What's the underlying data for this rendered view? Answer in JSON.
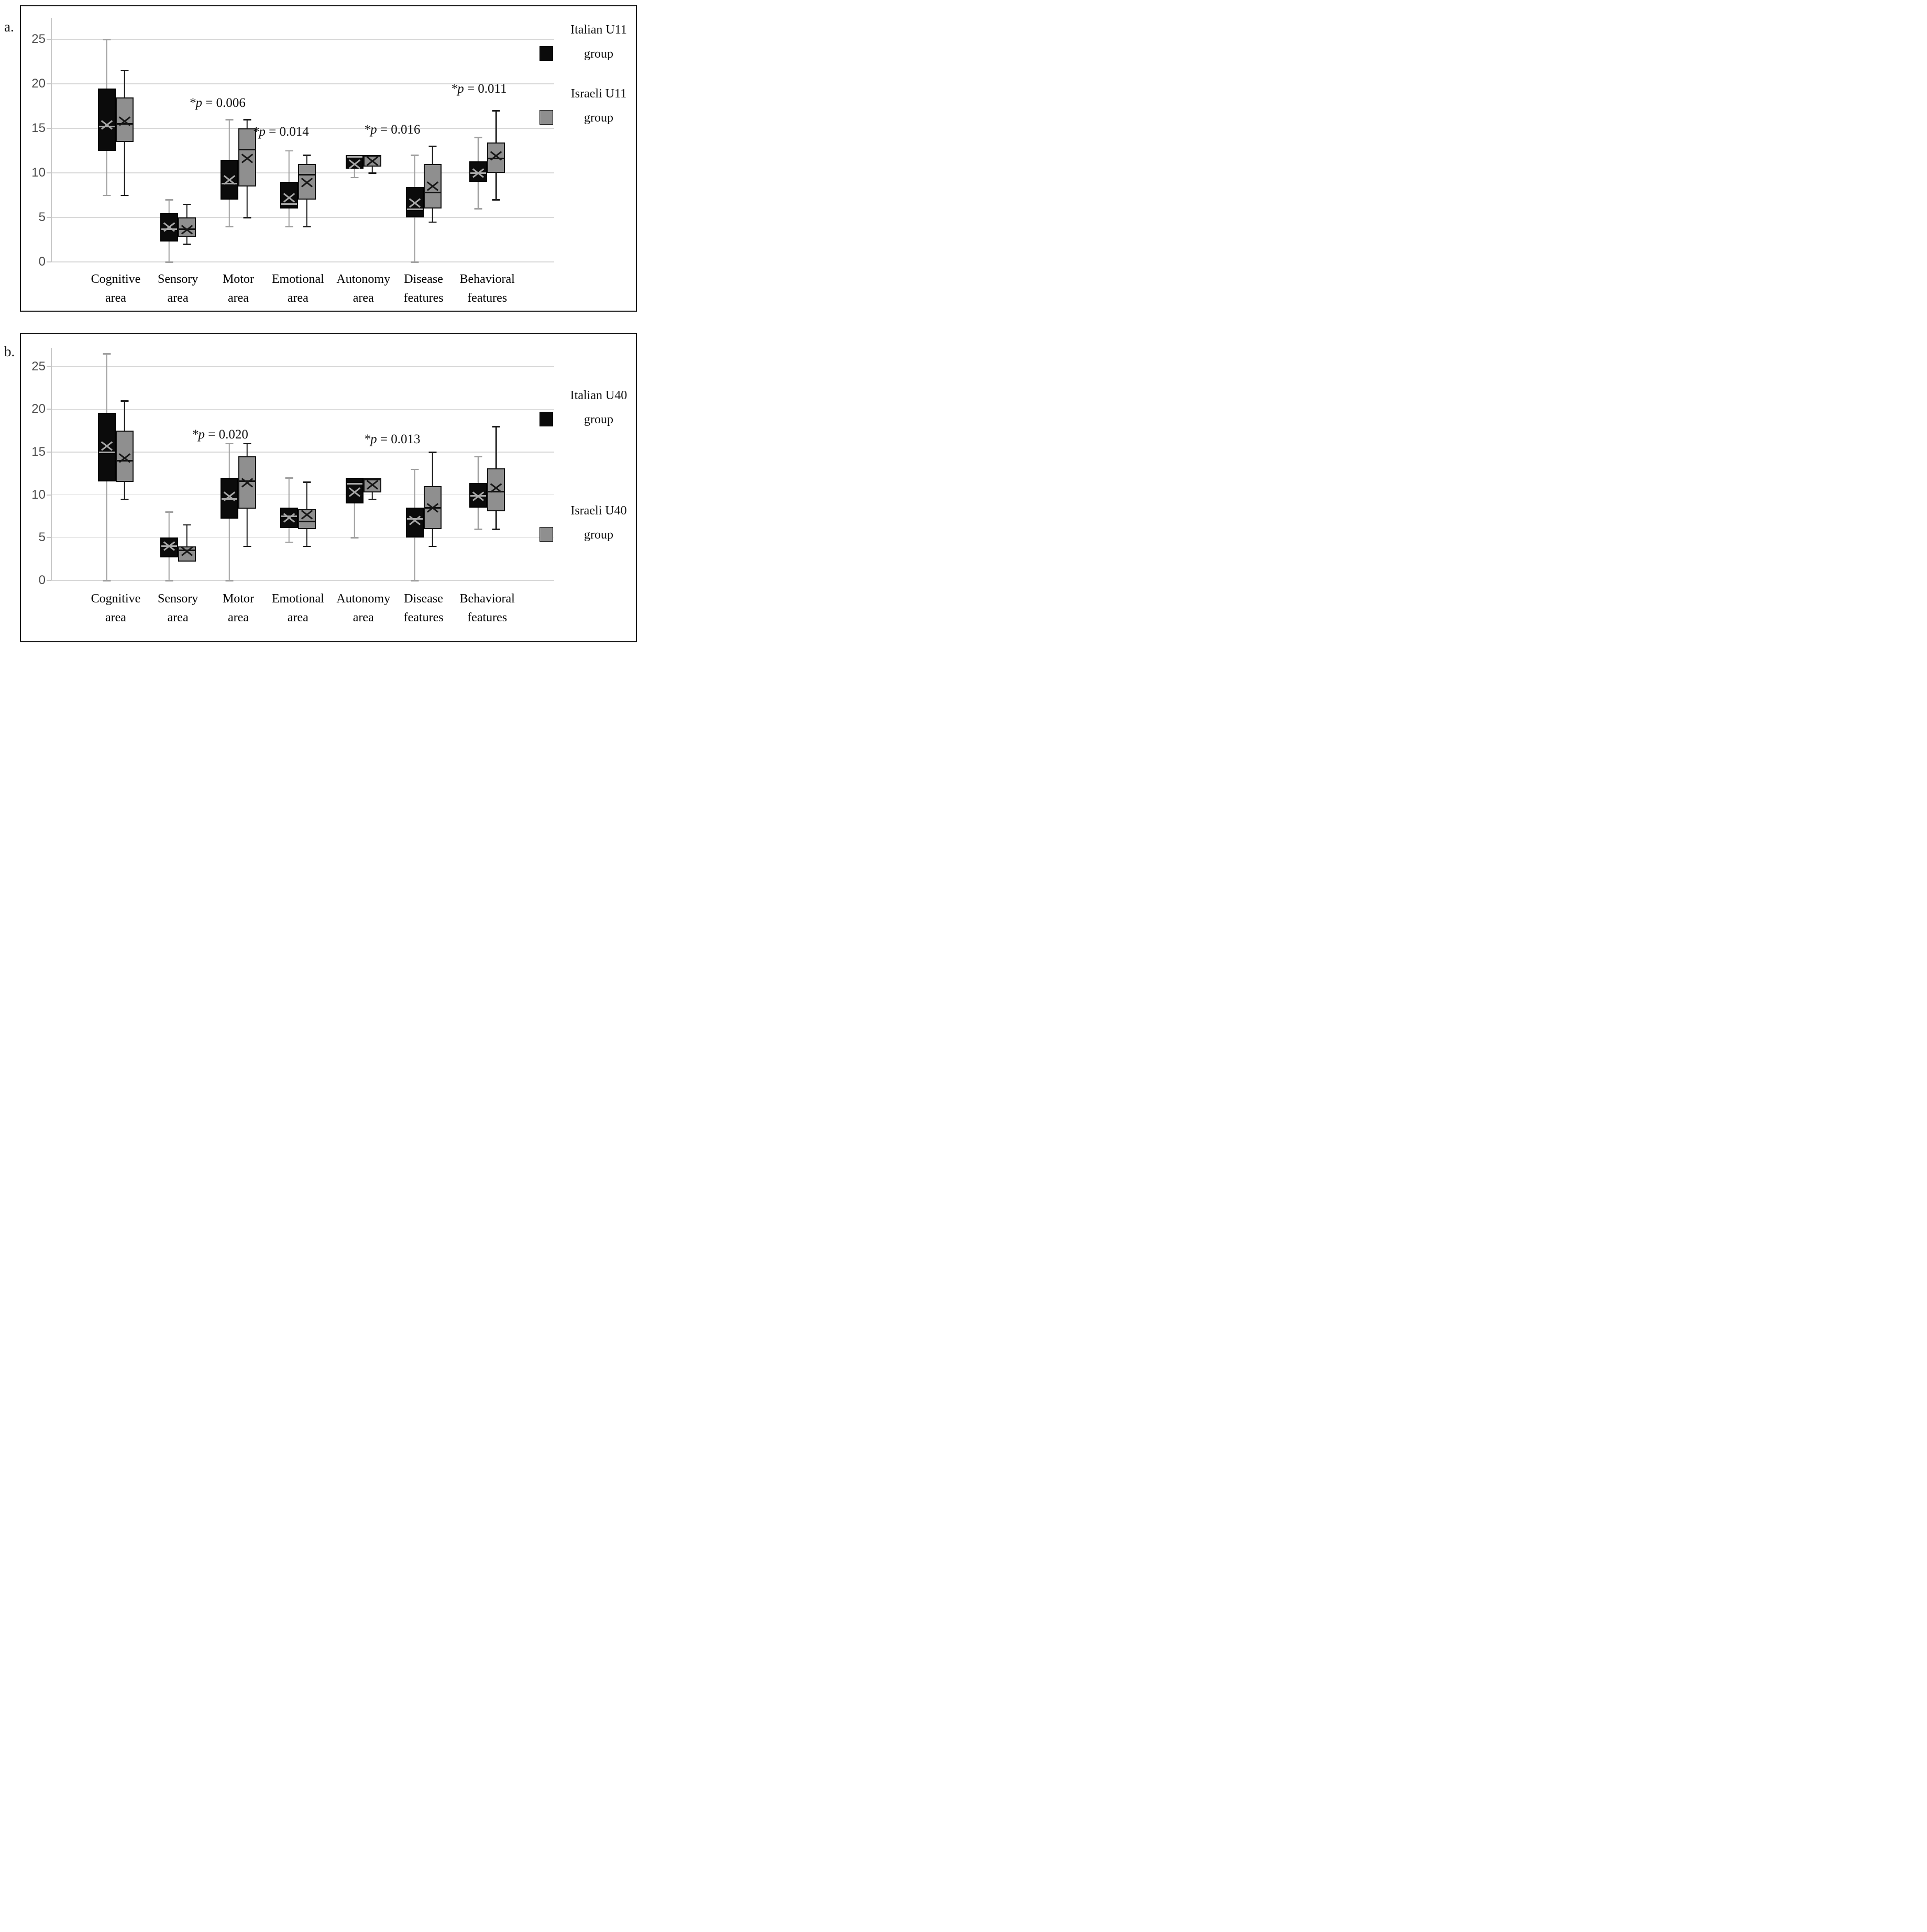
{
  "panels": [
    {
      "label": "a.",
      "legend": [
        {
          "name": "Italian U11 group",
          "line1": "Italian U11",
          "line2": "group",
          "series_index": 0
        },
        {
          "name": "Israeli U11 group",
          "line1": "Israeli U11",
          "line2": "group",
          "series_index": 1
        }
      ]
    },
    {
      "label": "b.",
      "legend": [
        {
          "name": "Italian U40 group",
          "line1": "Italian U40",
          "line2": "group",
          "series_index": 0
        },
        {
          "name": "Israeli U40 group",
          "line1": "Israeli U40",
          "line2": "group",
          "series_index": 1
        }
      ]
    }
  ],
  "chart_data": [
    {
      "type": "box",
      "title": "",
      "xlabel": "",
      "ylabel": "",
      "ylim": [
        0,
        27.5
      ],
      "yticks": [
        0,
        5,
        10,
        15,
        20,
        25
      ],
      "grid": true,
      "legend_position": "right",
      "categories": [
        "Cognitive area",
        "Sensory area",
        "Motor area",
        "Emotional area",
        "Autonomy area",
        "Disease features",
        "Behavioral features"
      ],
      "category_lines": [
        [
          "Cognitive",
          "area"
        ],
        [
          "Sensory",
          "area"
        ],
        [
          "Motor",
          "area"
        ],
        [
          "Emotional",
          "area"
        ],
        [
          "Autonomy",
          "area"
        ],
        [
          "Disease",
          "features"
        ],
        [
          "Behavioral",
          "features"
        ]
      ],
      "series": [
        {
          "name": "Italian U11 group",
          "box_color": "#0b0b0b",
          "border_color": "#000000",
          "whisker_color": "#a0a0a0",
          "median_color": "#a8a8a8",
          "marker_color": "#a8a8a8",
          "boxes": [
            {
              "min": 7.5,
              "q1": 12.5,
              "median": 15.2,
              "mean": 15.4,
              "q3": 19.5,
              "max": 25
            },
            {
              "min": 0,
              "q1": 2.3,
              "median": 3.7,
              "mean": 3.9,
              "q3": 5.5,
              "max": 7
            },
            {
              "min": 4,
              "q1": 7,
              "median": 8.8,
              "mean": 9.2,
              "q3": 11.5,
              "max": 16
            },
            {
              "min": 4,
              "q1": 6,
              "median": 6.5,
              "mean": 7.2,
              "q3": 9,
              "max": 12.5
            },
            {
              "min": 9.5,
              "q1": 10.5,
              "median": 11.8,
              "mean": 11.0,
              "q3": 12,
              "max": 12
            },
            {
              "min": 0,
              "q1": 5,
              "median": 5.9,
              "mean": 6.6,
              "q3": 8.4,
              "max": 12
            },
            {
              "min": 6,
              "q1": 9,
              "median": 10,
              "mean": 10.0,
              "q3": 11.3,
              "max": 14
            }
          ]
        },
        {
          "name": "Israeli U11 group",
          "box_color": "#8f8f8f",
          "border_color": "#141414",
          "whisker_color": "#1c1c1c",
          "median_color": "#111111",
          "marker_color": "#161616",
          "boxes": [
            {
              "min": 7.5,
              "q1": 13.5,
              "median": 15.5,
              "mean": 15.8,
              "q3": 18.5,
              "max": 21.5
            },
            {
              "min": 2,
              "q1": 2.8,
              "median": 3.7,
              "mean": 3.6,
              "q3": 5,
              "max": 6.5
            },
            {
              "min": 5,
              "q1": 8.5,
              "median": 12.6,
              "mean": 11.6,
              "q3": 15,
              "max": 16
            },
            {
              "min": 4,
              "q1": 7,
              "median": 9.8,
              "mean": 8.9,
              "q3": 11,
              "max": 12
            },
            {
              "min": 10,
              "q1": 10.7,
              "median": 11.9,
              "mean": 11.3,
              "q3": 12,
              "max": 12
            },
            {
              "min": 4.5,
              "q1": 6,
              "median": 7.8,
              "mean": 8.5,
              "q3": 11,
              "max": 13
            },
            {
              "min": 7,
              "q1": 10,
              "median": 11.6,
              "mean": 11.9,
              "q3": 13.4,
              "max": 17
            }
          ]
        }
      ],
      "annotations": [
        {
          "text_italic": "*p",
          "text_rest": "= 0.006",
          "category_index": 2,
          "y": 17.8,
          "dx": -40
        },
        {
          "text_italic": "*p",
          "text_rest": "= 0.014",
          "category_index": 3,
          "y": 14.6,
          "dx": -33
        },
        {
          "text_italic": "*p",
          "text_rest": "= 0.016",
          "category_index": 5,
          "y": 14.8,
          "dx": -60
        },
        {
          "text_italic": "*p",
          "text_rest": "= 0.011",
          "category_index": 6,
          "y": 19.4,
          "dx": -16
        }
      ]
    },
    {
      "type": "box",
      "title": "",
      "xlabel": "",
      "ylabel": "",
      "ylim": [
        0,
        27.5
      ],
      "yticks": [
        0,
        5,
        10,
        15,
        20,
        25
      ],
      "grid": true,
      "legend_position": "right",
      "categories": [
        "Cognitive area",
        "Sensory area",
        "Motor area",
        "Emotional area",
        "Autonomy area",
        "Disease features",
        "Behavioral features"
      ],
      "category_lines": [
        [
          "Cognitive",
          "area"
        ],
        [
          "Sensory",
          "area"
        ],
        [
          "Motor",
          "area"
        ],
        [
          "Emotional",
          "area"
        ],
        [
          "Autonomy",
          "area"
        ],
        [
          "Disease",
          "features"
        ],
        [
          "Behavioral",
          "features"
        ]
      ],
      "series": [
        {
          "name": "Italian U40 group",
          "box_color": "#0b0b0b",
          "border_color": "#000000",
          "whisker_color": "#a0a0a0",
          "median_color": "#a8a8a8",
          "marker_color": "#a8a8a8",
          "boxes": [
            {
              "min": 0,
              "q1": 11.6,
              "median": 15,
              "mean": 15.7,
              "q3": 19.6,
              "max": 26.5
            },
            {
              "min": 0,
              "q1": 2.7,
              "median": 4,
              "mean": 4.0,
              "q3": 5,
              "max": 8
            },
            {
              "min": 0,
              "q1": 7.2,
              "median": 9.5,
              "mean": 9.8,
              "q3": 12,
              "max": 16
            },
            {
              "min": 4.5,
              "q1": 6.1,
              "median": 7.5,
              "mean": 7.3,
              "q3": 8.5,
              "max": 12
            },
            {
              "min": 5,
              "q1": 9,
              "median": 11.3,
              "mean": 10.3,
              "q3": 12,
              "max": 12
            },
            {
              "min": 0,
              "q1": 5,
              "median": 7.2,
              "mean": 7.0,
              "q3": 8.5,
              "max": 13
            },
            {
              "min": 6,
              "q1": 8.5,
              "median": 9.9,
              "mean": 9.8,
              "q3": 11.4,
              "max": 14.5
            }
          ]
        },
        {
          "name": "Israeli U40 group",
          "box_color": "#8f8f8f",
          "border_color": "#141414",
          "whisker_color": "#1c1c1c",
          "median_color": "#111111",
          "marker_color": "#161616",
          "boxes": [
            {
              "min": 9.5,
              "q1": 11.5,
              "median": 14,
              "mean": 14.3,
              "q3": 17.5,
              "max": 21
            },
            {
              "min": 2.2,
              "q1": 2.2,
              "median": 3.5,
              "mean": 3.4,
              "q3": 4,
              "max": 6.5
            },
            {
              "min": 4,
              "q1": 8.4,
              "median": 11.6,
              "mean": 11.4,
              "q3": 14.5,
              "max": 16
            },
            {
              "min": 4,
              "q1": 6,
              "median": 6.9,
              "mean": 7.7,
              "q3": 8.3,
              "max": 11.5
            },
            {
              "min": 9.5,
              "q1": 10.3,
              "median": 11.8,
              "mean": 11.2,
              "q3": 12,
              "max": 12
            },
            {
              "min": 4,
              "q1": 6,
              "median": 8.5,
              "mean": 8.5,
              "q3": 11,
              "max": 15
            },
            {
              "min": 6,
              "q1": 8.1,
              "median": 10.4,
              "mean": 10.8,
              "q3": 13.1,
              "max": 18
            }
          ]
        }
      ],
      "annotations": [
        {
          "text_italic": "*p",
          "text_rest": "= 0.020",
          "category_index": 2,
          "y": 17.0,
          "dx": -35
        },
        {
          "text_italic": "*p",
          "text_rest": "= 0.013",
          "category_index": 5,
          "y": 16.5,
          "dx": -60
        }
      ]
    }
  ]
}
